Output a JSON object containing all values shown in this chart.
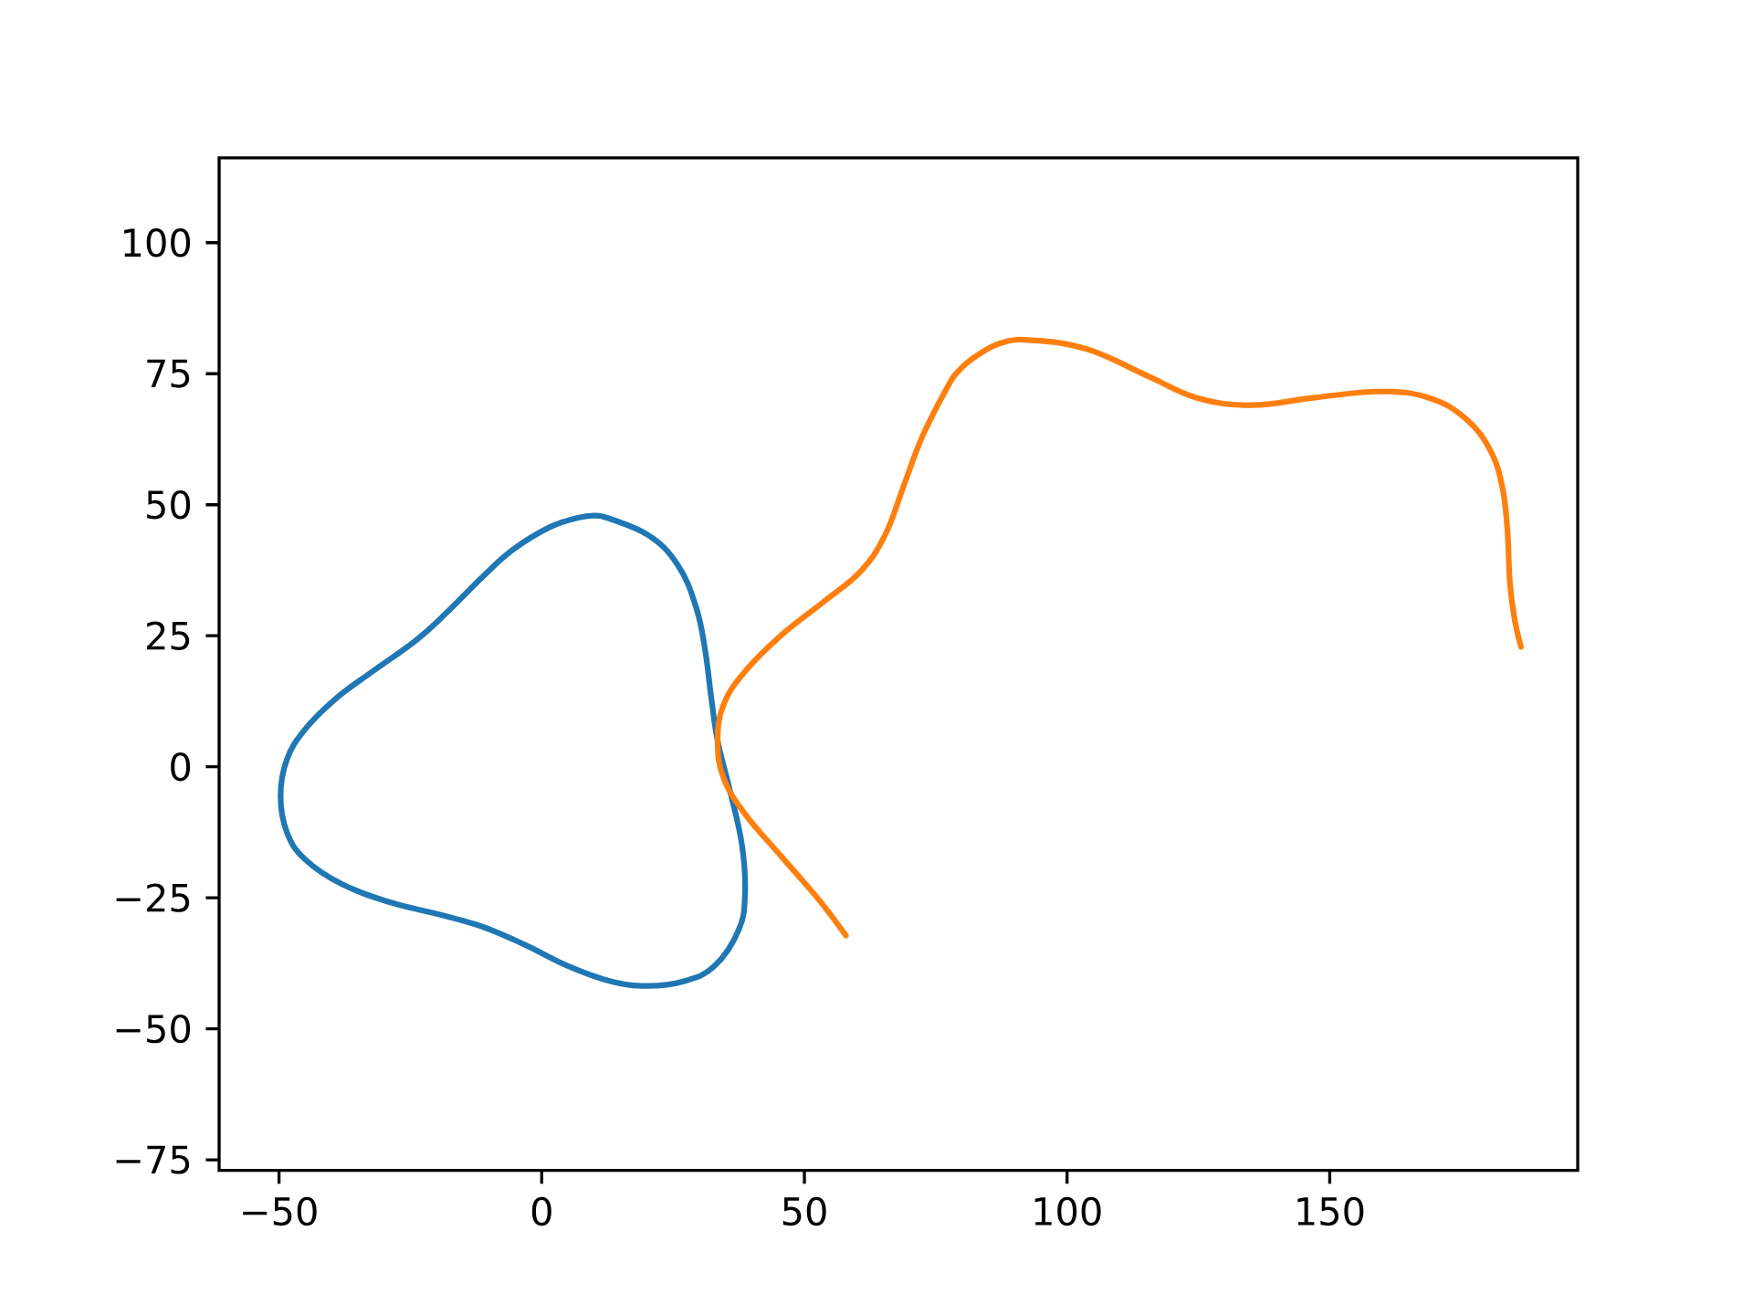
{
  "chart_data": {
    "type": "line",
    "xlim": [
      -61.4,
      197.2
    ],
    "ylim": [
      -77,
      116.2
    ],
    "xticks": [
      {
        "value": -50,
        "label": "−50"
      },
      0,
      50,
      100,
      150
    ],
    "yticks": [
      {
        "value": -75,
        "label": "−75"
      },
      {
        "value": -50,
        "label": "−50"
      },
      {
        "value": -25,
        "label": "−25"
      },
      0,
      25,
      50,
      75,
      100
    ],
    "series": [
      {
        "color": "#1f77b4",
        "x": [
          11.4,
          20.1,
          25.9,
          29.4,
          31.1,
          32.3,
          33.5,
          35.8,
          38.1,
          38.7,
          37.5,
          32.9,
          27.1,
          20.1,
          13.1,
          5.0,
          -3.1,
          -11.3,
          -19.4,
          -28.7,
          -38.0,
          -45.0,
          -48.5,
          -49.7,
          -48.5,
          -45.0,
          -39.2,
          -32.2,
          -24.1,
          -18.3,
          -11.3,
          -5.5,
          1.5,
          7.3,
          10.9
        ],
        "values": [
          47.8,
          44.3,
          38.5,
          30.4,
          22.3,
          13.0,
          4.9,
          -4.4,
          -14.8,
          -24.1,
          -31.1,
          -38.0,
          -40.9,
          -41.8,
          -40.9,
          -38.0,
          -34.0,
          -30.5,
          -28.2,
          -25.9,
          -22.4,
          -17.7,
          -12.5,
          -5.6,
          1.4,
          7.2,
          13.0,
          18.2,
          24.0,
          29.2,
          36.2,
          41.4,
          45.7,
          47.6,
          47.9
        ]
      },
      {
        "color": "#ff7f0e",
        "x": [
          57.9,
          52.7,
          45.7,
          38.7,
          34.6,
          33.5,
          34.6,
          38.7,
          45.7,
          53.8,
          60.8,
          65.4,
          68.9,
          72.4,
          77.1,
          79.4,
          82.9,
          87.5,
          93.3,
          103.8,
          115.5,
          124.7,
          135.2,
          146.8,
          159.6,
          168.9,
          175.9,
          180.5,
          182.8,
          183.8,
          184.3,
          185.2,
          186.4
        ],
        "values": [
          -32.2,
          -25.3,
          -17.2,
          -9.0,
          -2.1,
          4.9,
          11.8,
          18.2,
          25.2,
          31.6,
          37.4,
          44.3,
          53.6,
          62.9,
          72.2,
          75.6,
          78.5,
          80.9,
          81.4,
          79.7,
          74.5,
          70.4,
          69.0,
          70.4,
          71.6,
          70.4,
          66.4,
          60.5,
          53.6,
          45.5,
          35.0,
          28.1,
          22.9
        ]
      }
    ]
  }
}
